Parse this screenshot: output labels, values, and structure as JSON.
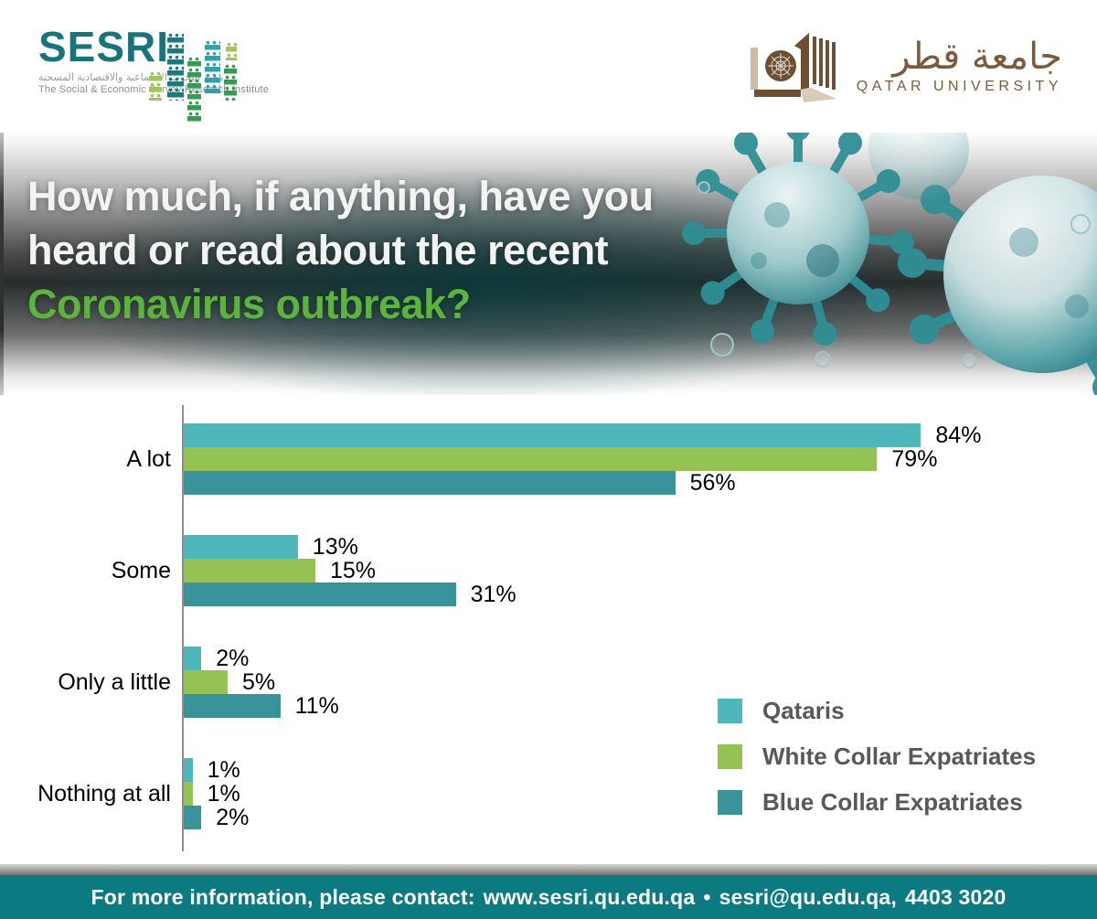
{
  "header": {
    "sesri": {
      "name": "SESRI",
      "arabic": "معهد البحوث الاجتماعية والاقتصادية المسحية",
      "subtitle": "The Social & Economic Survey Research Institute",
      "brand_color": "#19737b"
    },
    "qu": {
      "arabic": "جامعة قطر",
      "name": "QATAR UNIVERSITY",
      "brand_color": "#7a5c3c"
    }
  },
  "banner": {
    "line1": "How much, if anything, have you",
    "line2": "heard or read about the recent",
    "line3": "Coronavirus outbreak?",
    "highlight_color": "#5bb53d"
  },
  "chart_data": {
    "type": "bar",
    "orientation": "horizontal",
    "title": "",
    "xlabel": "",
    "ylabel": "",
    "xlim": [
      0,
      100
    ],
    "grid": false,
    "legend_position": "right-bottom",
    "value_suffix": "%",
    "categories": [
      "A lot",
      "Some",
      "Only a little",
      "Nothing at all"
    ],
    "series": [
      {
        "name": "Qataris",
        "color": "#4eb7bb",
        "values": [
          84,
          13,
          2,
          1
        ]
      },
      {
        "name": "White Collar Expatriates",
        "color": "#95c353",
        "values": [
          79,
          15,
          5,
          1
        ]
      },
      {
        "name": "Blue Collar Expatriates",
        "color": "#3a939a",
        "values": [
          56,
          31,
          11,
          2
        ]
      }
    ]
  },
  "footer": {
    "label": "For more information, please contact:",
    "website": "www.sesri.qu.edu.qa",
    "separator": "•",
    "email": "sesri@qu.edu.qa,",
    "phone": "4403 3020",
    "bg_color": "#0b7b81"
  }
}
